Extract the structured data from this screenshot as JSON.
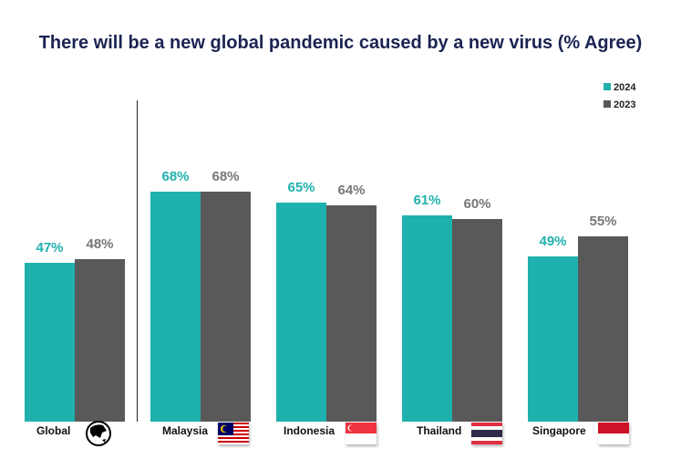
{
  "chart_data": {
    "type": "bar",
    "title": "There will be a new global pandemic caused by a new virus (% Agree)",
    "categories": [
      "Global",
      "Malaysia",
      "Indonesia",
      "Thailand",
      "Singapore"
    ],
    "series": [
      {
        "name": "2024",
        "color": "#1fb1ad",
        "values": [
          47,
          68,
          65,
          61,
          49
        ],
        "labels": [
          "47%",
          "68%",
          "65%",
          "61%",
          "49%"
        ]
      },
      {
        "name": "2023",
        "color": "#595959",
        "values": [
          48,
          68,
          64,
          60,
          55
        ],
        "labels": [
          "48%",
          "68%",
          "64%",
          "60%",
          "55%"
        ]
      }
    ],
    "ylim": [
      0,
      100
    ],
    "legend": "top-right",
    "category_icons": [
      "globe-icon",
      "malaysia-flag-icon",
      "singapore-flag-icon",
      "thailand-flag-icon",
      "indonesia-flag-icon"
    ]
  }
}
